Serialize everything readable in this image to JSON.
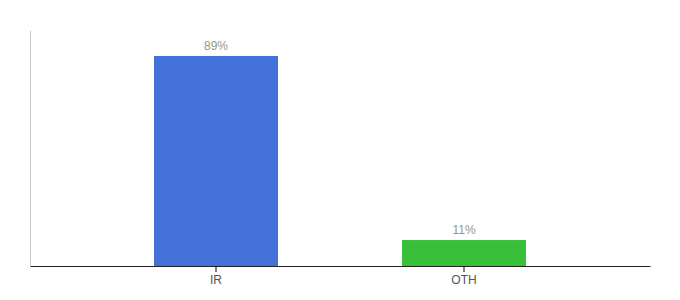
{
  "chart_data": {
    "type": "bar",
    "categories": [
      "IR",
      "OTH"
    ],
    "values": [
      89,
      11
    ],
    "value_labels": [
      "89%",
      "11%"
    ],
    "colors": [
      "#4472db",
      "#3abf3a"
    ],
    "ylim": [
      0,
      100
    ],
    "data_labels": true,
    "tick_labels": "x"
  }
}
